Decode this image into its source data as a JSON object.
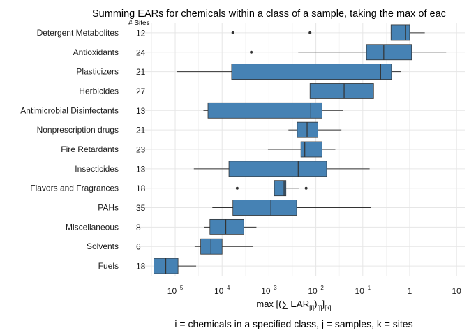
{
  "chart_data": {
    "type": "boxplot",
    "orientation": "horizontal",
    "title": "Summing EARs for chemicals within a class of a sample, taking the max of eac",
    "sites_header": "# Sites",
    "xlabel": {
      "text": "max [(∑  EAR",
      "sub1": "[i]",
      "mid": ")",
      "sub2": "[j]",
      "end": "]",
      "sub3": "[k]"
    },
    "caption": "i = chemicals in a specified class, j = samples, k = sites",
    "x_scale": "log10",
    "xlim": [
      1.8e-06,
      15
    ],
    "x_ticks": [
      {
        "value": 1e-05,
        "base": "10",
        "exp": "−5"
      },
      {
        "value": 0.0001,
        "base": "10",
        "exp": "−4"
      },
      {
        "value": 0.001,
        "base": "10",
        "exp": "−3"
      },
      {
        "value": 0.01,
        "base": "10",
        "exp": "−2"
      },
      {
        "value": 0.1,
        "base": "10",
        "exp": "−1"
      },
      {
        "value": 1,
        "base": "1",
        "exp": ""
      },
      {
        "value": 10,
        "base": "10",
        "exp": ""
      }
    ],
    "grid": true,
    "box_color": "#4682b4",
    "categories": [
      {
        "name": "Detergent Metabolites",
        "sites": "12",
        "min": 0.4,
        "q1": 0.4,
        "median": 0.82,
        "q3": 1.0,
        "max": 2.1,
        "outliers": [
          0.00017,
          0.0075
        ]
      },
      {
        "name": "Antioxidants",
        "sites": "24",
        "min": 0.0042,
        "q1": 0.12,
        "median": 0.28,
        "q3": 1.1,
        "max": 6.0,
        "outliers": [
          0.00042
        ]
      },
      {
        "name": "Plasticizers",
        "sites": "21",
        "min": 1.1e-05,
        "q1": 0.00016,
        "median": 0.24,
        "q3": 0.41,
        "max": 0.65,
        "outliers": []
      },
      {
        "name": "Herbicides",
        "sites": "27",
        "min": 0.0024,
        "q1": 0.0075,
        "median": 0.04,
        "q3": 0.17,
        "max": 1.5,
        "outliers": []
      },
      {
        "name": "Antimicrobial Disinfectants",
        "sites": "13",
        "min": 4e-05,
        "q1": 5e-05,
        "median": 0.0078,
        "q3": 0.0135,
        "max": 0.038,
        "outliers": []
      },
      {
        "name": "Nonprescription drugs",
        "sites": "21",
        "min": 0.0026,
        "q1": 0.004,
        "median": 0.0065,
        "q3": 0.011,
        "max": 0.035,
        "outliers": []
      },
      {
        "name": "Fire Retardants",
        "sites": "23",
        "min": 0.00095,
        "q1": 0.0048,
        "median": 0.0058,
        "q3": 0.0135,
        "max": 0.026,
        "outliers": []
      },
      {
        "name": "Insecticides",
        "sites": "13",
        "min": 2.5e-05,
        "q1": 0.00014,
        "median": 0.0042,
        "q3": 0.017,
        "max": 0.14,
        "outliers": []
      },
      {
        "name": "Flavors and Fragrances",
        "sites": "18",
        "min": 0.0013,
        "q1": 0.0013,
        "median": 0.0021,
        "q3": 0.0023,
        "max": 0.0043,
        "outliers": [
          0.00021,
          0.0062
        ]
      },
      {
        "name": "PAHs",
        "sites": "35",
        "min": 6.2e-05,
        "q1": 0.00017,
        "median": 0.0011,
        "q3": 0.0039,
        "max": 0.15,
        "outliers": []
      },
      {
        "name": "Miscellaneous",
        "sites": "8",
        "min": 4.2e-05,
        "q1": 5.5e-05,
        "median": 0.00012,
        "q3": 0.00029,
        "max": 0.00054,
        "outliers": []
      },
      {
        "name": "Solvents",
        "sites": "6",
        "min": 2.6e-05,
        "q1": 3.5e-05,
        "median": 5.8e-05,
        "q3": 0.0001,
        "max": 0.00045,
        "outliers": []
      },
      {
        "name": "Fuels",
        "sites": "18",
        "min": 3.5e-06,
        "q1": 3.5e-06,
        "median": 6.3e-06,
        "q3": 1.15e-05,
        "max": 2.8e-05,
        "outliers": []
      }
    ]
  }
}
